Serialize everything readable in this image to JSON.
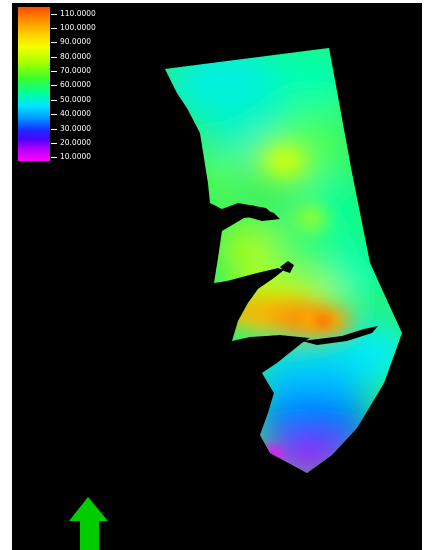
{
  "legend": {
    "labels": [
      "110.0000",
      "100.0000",
      "90.0000",
      "80.0000",
      "70.0000",
      "60.0000",
      "50.0000",
      "40.0000",
      "30.0000",
      "20.0000",
      "10.0000"
    ],
    "values": [
      110,
      100,
      90,
      80,
      70,
      60,
      50,
      40,
      30,
      20,
      10
    ],
    "min": 10,
    "max": 110
  },
  "colors": {
    "background": "#000000",
    "frame": "#ffffff",
    "north_arrow": "#00cc00"
  },
  "north_arrow": {
    "icon": "north-arrow-icon"
  }
}
